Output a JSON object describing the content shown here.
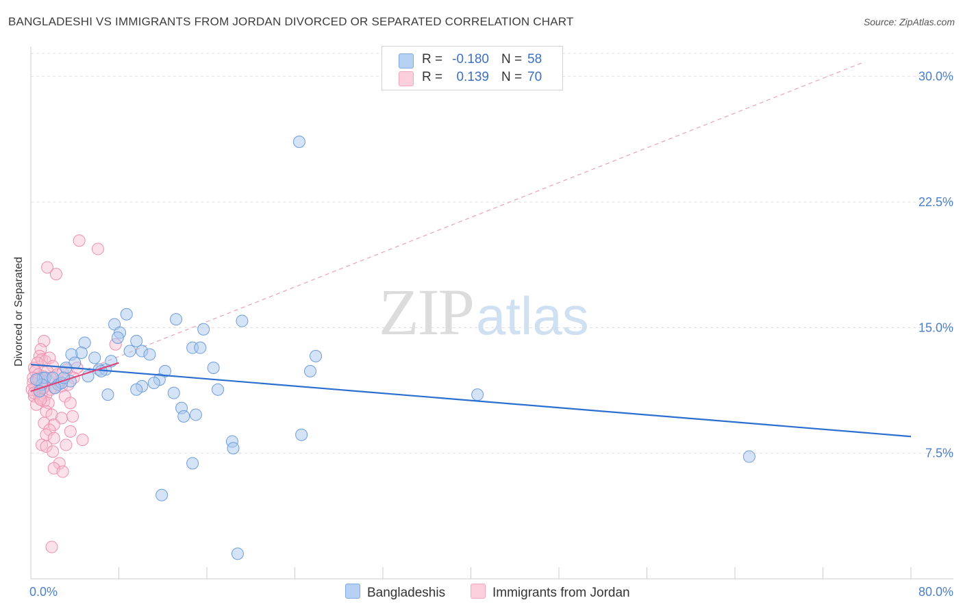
{
  "header": {
    "title": "BANGLADESHI VS IMMIGRANTS FROM JORDAN DIVORCED OR SEPARATED CORRELATION CHART",
    "source": "Source: ZipAtlas.com"
  },
  "watermark": {
    "zip": "ZIP",
    "atlas": "atlas"
  },
  "legend": {
    "rows": [
      {
        "r_label": "R =",
        "r_value": "-0.180",
        "n_label": "N =",
        "n_value": "58",
        "color": "#7ea9e6"
      },
      {
        "r_label": "R =",
        "r_value": "0.139",
        "n_label": "N =",
        "n_value": "70",
        "color": "#f4a6bf"
      }
    ]
  },
  "bottom_legend": {
    "series1": "Bangladeshis",
    "series2": "Immigrants from Jordan"
  },
  "colors": {
    "blue_fill": "#a9c7ee",
    "blue_stroke": "#6e9ddc",
    "blue_line": "#2a6fd0",
    "pink_fill": "#f7bfd1",
    "pink_stroke": "#ee8fae",
    "pink_line": "#e0457a",
    "grid": "#dddddd",
    "tick_text": "#4a7fc9"
  },
  "chart_data": {
    "type": "scatter",
    "title": "BANGLADESHI VS IMMIGRANTS FROM JORDAN DIVORCED OR SEPARATED CORRELATION CHART",
    "xlabel": "",
    "ylabel": "Divorced or Separated",
    "xlim": [
      0,
      80
    ],
    "ylim": [
      0,
      31.5
    ],
    "x_tick_labels": [
      "0.0%",
      "80.0%"
    ],
    "y_ticks": [
      7.5,
      15.0,
      22.5,
      30.0
    ],
    "y_tick_labels": [
      "7.5%",
      "15.0%",
      "22.5%",
      "30.0%"
    ],
    "series": [
      {
        "name": "Bangladeshis",
        "r": -0.18,
        "n": 58,
        "trend": {
          "x": [
            0,
            80
          ],
          "y": [
            12.8,
            8.5
          ],
          "style": "solid"
        },
        "points": [
          [
            24.4,
            26.1
          ],
          [
            8.7,
            15.8
          ],
          [
            13.2,
            15.5
          ],
          [
            19.2,
            15.4
          ],
          [
            7.6,
            15.2
          ],
          [
            15.7,
            14.9
          ],
          [
            8.1,
            14.7
          ],
          [
            7.9,
            14.4
          ],
          [
            9.6,
            14.2
          ],
          [
            4.9,
            14.1
          ],
          [
            14.7,
            13.8
          ],
          [
            15.4,
            13.8
          ],
          [
            9.0,
            13.6
          ],
          [
            10.1,
            13.6
          ],
          [
            4.6,
            13.5
          ],
          [
            3.7,
            13.4
          ],
          [
            10.8,
            13.4
          ],
          [
            5.8,
            13.2
          ],
          [
            25.9,
            13.3
          ],
          [
            7.3,
            13.0
          ],
          [
            4.0,
            12.9
          ],
          [
            3.2,
            12.6
          ],
          [
            6.2,
            12.5
          ],
          [
            6.8,
            12.5
          ],
          [
            6.4,
            12.4
          ],
          [
            12.2,
            12.4
          ],
          [
            16.6,
            12.6
          ],
          [
            25.4,
            12.4
          ],
          [
            5.2,
            12.1
          ],
          [
            11.7,
            11.9
          ],
          [
            1.1,
            12.0
          ],
          [
            1.3,
            12.0
          ],
          [
            2.0,
            12.0
          ],
          [
            3.6,
            11.8
          ],
          [
            2.5,
            11.6
          ],
          [
            2.8,
            11.7
          ],
          [
            11.2,
            11.7
          ],
          [
            10.1,
            11.5
          ],
          [
            9.6,
            11.3
          ],
          [
            17.0,
            11.3
          ],
          [
            13.0,
            11.1
          ],
          [
            7.0,
            11.0
          ],
          [
            40.6,
            11.0
          ],
          [
            13.7,
            10.2
          ],
          [
            15.0,
            9.8
          ],
          [
            13.9,
            9.7
          ],
          [
            24.6,
            8.6
          ],
          [
            18.3,
            8.2
          ],
          [
            18.4,
            7.8
          ],
          [
            65.3,
            7.3
          ],
          [
            14.7,
            6.9
          ],
          [
            11.9,
            5.0
          ],
          [
            18.8,
            1.5
          ],
          [
            1.0,
            11.6
          ],
          [
            0.5,
            11.9
          ],
          [
            2.2,
            11.4
          ],
          [
            0.8,
            11.2
          ],
          [
            3.0,
            12.0
          ]
        ]
      },
      {
        "name": "Immigrants from Jordan",
        "r": 0.139,
        "n": 70,
        "trend_fit": {
          "x": [
            0,
            8
          ],
          "y": [
            11.2,
            12.9
          ],
          "style": "solid"
        },
        "trend_ext": {
          "x": [
            0,
            75.5
          ],
          "y": [
            11.2,
            30.8
          ],
          "style": "dashed"
        },
        "points": [
          [
            4.4,
            20.2
          ],
          [
            6.1,
            19.7
          ],
          [
            1.5,
            18.6
          ],
          [
            2.3,
            18.2
          ],
          [
            7.7,
            14.0
          ],
          [
            1.2,
            14.2
          ],
          [
            0.9,
            13.7
          ],
          [
            0.8,
            13.3
          ],
          [
            1.0,
            13.1
          ],
          [
            1.3,
            13.0
          ],
          [
            0.6,
            12.9
          ],
          [
            1.7,
            13.2
          ],
          [
            2.0,
            12.7
          ],
          [
            3.3,
            12.5
          ],
          [
            4.2,
            12.6
          ],
          [
            0.3,
            12.6
          ],
          [
            0.4,
            12.4
          ],
          [
            0.7,
            12.2
          ],
          [
            1.1,
            12.1
          ],
          [
            1.6,
            11.9
          ],
          [
            0.2,
            12.0
          ],
          [
            0.5,
            11.8
          ],
          [
            2.6,
            11.8
          ],
          [
            3.9,
            12.0
          ],
          [
            0.9,
            11.6
          ],
          [
            1.3,
            11.5
          ],
          [
            2.1,
            11.4
          ],
          [
            0.4,
            11.4
          ],
          [
            0.6,
            11.2
          ],
          [
            1.0,
            11.1
          ],
          [
            1.4,
            11.0
          ],
          [
            1.8,
            11.3
          ],
          [
            2.8,
            11.5
          ],
          [
            3.4,
            11.6
          ],
          [
            0.3,
            10.9
          ],
          [
            0.8,
            10.8
          ],
          [
            1.2,
            10.6
          ],
          [
            1.6,
            10.5
          ],
          [
            0.5,
            10.4
          ],
          [
            3.1,
            10.9
          ],
          [
            3.6,
            10.5
          ],
          [
            1.4,
            10.0
          ],
          [
            1.9,
            9.8
          ],
          [
            2.8,
            9.6
          ],
          [
            3.8,
            9.7
          ],
          [
            1.2,
            9.3
          ],
          [
            2.1,
            9.2
          ],
          [
            1.7,
            8.9
          ],
          [
            3.6,
            8.8
          ],
          [
            1.4,
            8.6
          ],
          [
            2.1,
            8.4
          ],
          [
            4.7,
            8.3
          ],
          [
            1.0,
            8.0
          ],
          [
            1.4,
            7.9
          ],
          [
            3.2,
            8.0
          ],
          [
            2.0,
            7.6
          ],
          [
            2.6,
            6.9
          ],
          [
            2.1,
            6.6
          ],
          [
            2.9,
            6.4
          ],
          [
            1.9,
            1.9
          ],
          [
            0.2,
            11.7
          ],
          [
            0.1,
            11.3
          ],
          [
            0.7,
            11.9
          ],
          [
            1.5,
            12.4
          ],
          [
            2.4,
            12.2
          ],
          [
            1.1,
            11.4
          ],
          [
            0.3,
            11.1
          ],
          [
            0.9,
            10.7
          ],
          [
            1.8,
            12.0
          ],
          [
            2.9,
            12.3
          ]
        ]
      }
    ]
  }
}
